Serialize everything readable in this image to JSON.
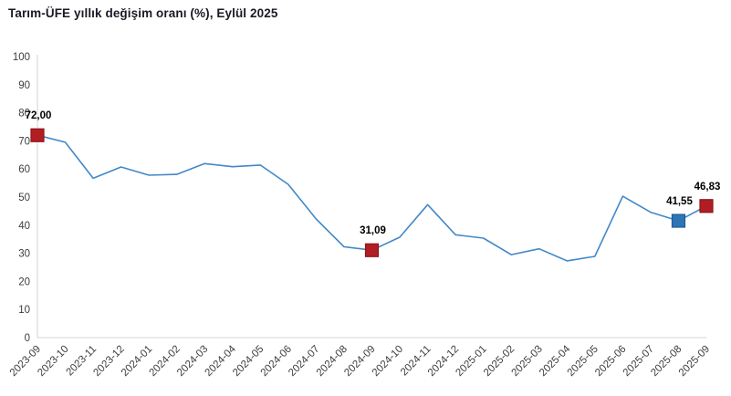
{
  "title": "Tarım-ÜFE yıllık değişim oranı (%), Eylül 2025",
  "colors": {
    "line": "#4288c8",
    "axis": "#d6d6d6",
    "tick_text": "#3d3d3d",
    "title_text": "#1a1a26",
    "data_label_text": "#000000",
    "red_marker": "#b01e24",
    "red_marker_border": "#8e1418",
    "blue_marker": "#2e75b6",
    "blue_marker_border": "#1d5d99"
  },
  "chart_data": {
    "type": "line",
    "title": "Tarım-ÜFE yıllık değişim oranı (%), Eylül 2025",
    "xlabel": "",
    "ylabel": "",
    "ylim": [
      0,
      100
    ],
    "yticks": [
      0,
      10,
      20,
      30,
      40,
      50,
      60,
      70,
      80,
      90,
      100
    ],
    "grid": false,
    "legend": "none",
    "x": [
      "2023-09",
      "2023-10",
      "2023-11",
      "2023-12",
      "2024-01",
      "2024-02",
      "2024-03",
      "2024-04",
      "2024-05",
      "2024-06",
      "2024-07",
      "2024-08",
      "2024-09",
      "2024-10",
      "2024-11",
      "2024-12",
      "2025-01",
      "2025-02",
      "2025-03",
      "2025-04",
      "2025-05",
      "2025-06",
      "2025-07",
      "2025-08",
      "2025-09"
    ],
    "series": [
      {
        "values": [
          72.0,
          69.5,
          56.7,
          60.7,
          57.8,
          58.1,
          61.9,
          60.8,
          61.4,
          54.5,
          42.2,
          32.3,
          31.09,
          35.7,
          47.3,
          36.6,
          35.4,
          29.5,
          31.6,
          27.3,
          28.9,
          50.3,
          44.6,
          41.55,
          46.83
        ]
      }
    ],
    "annotations": [
      {
        "x": "2023-09",
        "index": 0,
        "value": 72.0,
        "label": "72,00",
        "marker": "red"
      },
      {
        "x": "2024-09",
        "index": 12,
        "value": 31.09,
        "label": "31,09",
        "marker": "red"
      },
      {
        "x": "2025-08",
        "index": 23,
        "value": 41.55,
        "label": "41,55",
        "marker": "blue"
      },
      {
        "x": "2025-09",
        "index": 24,
        "value": 46.83,
        "label": "46,83",
        "marker": "red"
      }
    ]
  }
}
